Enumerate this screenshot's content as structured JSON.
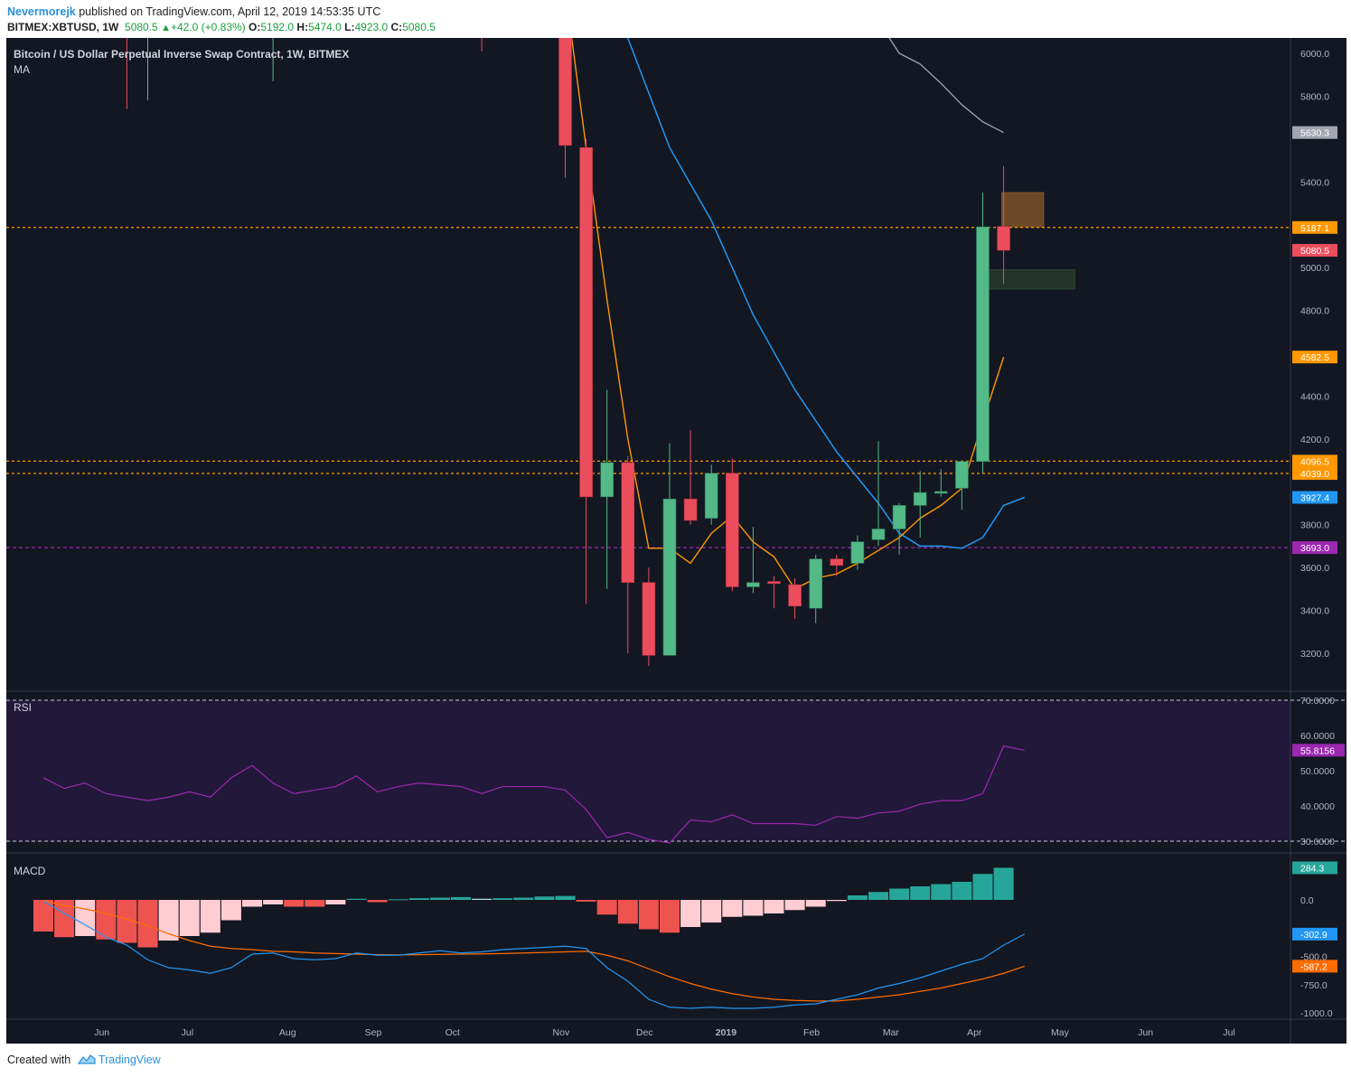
{
  "header": {
    "user": "Nevermorejk",
    "published_text": "published on TradingView.com, April 12, 2019 14:53:35 UTC",
    "symbol": "BITMEX:XBTUSD, 1W",
    "last": "5080.5",
    "change": "+42.0 (+0.83%)",
    "o_label": "O:",
    "o_value": "5192.0",
    "h_label": "H:",
    "h_value": "5474.0",
    "l_label": "L:",
    "l_value": "4923.0",
    "c_label": "C:",
    "c_value": "5080.5"
  },
  "footer": {
    "created_with": "Created with",
    "brand": "TradingView",
    "logo_icon": "tradingview-logo-icon"
  },
  "colors": {
    "background": "#131722",
    "up": "#53b987",
    "down": "#eb4d5c",
    "ma_orange": "#ff9800",
    "ma_blue": "#2196f3",
    "ma_gray": "#a3a6af",
    "purple_line": "#9c27b0",
    "rsi_band": "#22183a",
    "macd_pos": "#26a69a",
    "macd_neg": "#ef5350",
    "macd_pos_light": "#b2dfdb",
    "macd_neg_light": "#ffcdd2"
  },
  "chart_data": [
    {
      "type": "candlestick",
      "title": "Bitcoin / US Dollar Perpetual Inverse Swap Contract, 1W, BITMEX",
      "indicator_label": "MA",
      "x_labels": [
        "Jun",
        "Jul",
        "Aug",
        "Sep",
        "Oct",
        "Nov",
        "Dec",
        "2019",
        "Feb",
        "Mar",
        "Apr",
        "May",
        "Jun",
        "Jul"
      ],
      "y_ticks": [
        "6000.0",
        "5800.0",
        "5400.0",
        "5000.0",
        "4800.0",
        "4400.0",
        "4200.0",
        "3800.0",
        "3600.0",
        "3400.0",
        "3200.0"
      ],
      "ylim": [
        3050,
        6100
      ],
      "candles": [
        {
          "t": 0,
          "o": 6150,
          "h": 6300,
          "l": 6100,
          "c": 6200
        },
        {
          "t": 4,
          "o": 6200,
          "h": 6450,
          "l": 5740,
          "c": 6150
        },
        {
          "t": 5,
          "o": 6150,
          "h": 6300,
          "l": 5780,
          "c": 6250
        },
        {
          "t": 11,
          "o": 6200,
          "h": 6300,
          "l": 5870,
          "c": 6250
        },
        {
          "t": 21,
          "o": 6300,
          "h": 6300,
          "l": 6010,
          "c": 6200
        },
        {
          "t": 25,
          "o": 6400,
          "h": 6500,
          "l": 5420,
          "c": 5570
        },
        {
          "t": 26,
          "o": 5560,
          "h": 5600,
          "l": 3430,
          "c": 3930
        },
        {
          "t": 27,
          "o": 3930,
          "h": 4430,
          "l": 3500,
          "c": 4090
        },
        {
          "t": 28,
          "o": 4090,
          "h": 4120,
          "l": 3200,
          "c": 3530
        },
        {
          "t": 29,
          "o": 3530,
          "h": 3600,
          "l": 3140,
          "c": 3190
        },
        {
          "t": 30,
          "o": 3190,
          "h": 4180,
          "l": 3190,
          "c": 3920
        },
        {
          "t": 31,
          "o": 3920,
          "h": 4240,
          "l": 3800,
          "c": 3820
        },
        {
          "t": 32,
          "o": 3830,
          "h": 4080,
          "l": 3800,
          "c": 4040
        },
        {
          "t": 33,
          "o": 4040,
          "h": 4110,
          "l": 3490,
          "c": 3510
        },
        {
          "t": 34,
          "o": 3510,
          "h": 3790,
          "l": 3480,
          "c": 3530
        },
        {
          "t": 35,
          "o": 3535,
          "h": 3560,
          "l": 3410,
          "c": 3525
        },
        {
          "t": 36,
          "o": 3520,
          "h": 3550,
          "l": 3360,
          "c": 3420
        },
        {
          "t": 37,
          "o": 3410,
          "h": 3660,
          "l": 3340,
          "c": 3640
        },
        {
          "t": 38,
          "o": 3640,
          "h": 3660,
          "l": 3560,
          "c": 3610
        },
        {
          "t": 39,
          "o": 3620,
          "h": 3750,
          "l": 3590,
          "c": 3720
        },
        {
          "t": 40,
          "o": 3730,
          "h": 4190,
          "l": 3700,
          "c": 3780
        },
        {
          "t": 41,
          "o": 3780,
          "h": 3900,
          "l": 3660,
          "c": 3890
        },
        {
          "t": 42,
          "o": 3890,
          "h": 4050,
          "l": 3740,
          "c": 3950
        },
        {
          "t": 43,
          "o": 3950,
          "h": 4060,
          "l": 3930,
          "c": 3955
        },
        {
          "t": 44,
          "o": 3970,
          "h": 4100,
          "l": 3870,
          "c": 4095
        },
        {
          "t": 45,
          "o": 4095,
          "h": 5350,
          "l": 4040,
          "c": 5190
        },
        {
          "t": 46,
          "o": 5192,
          "h": 5474,
          "l": 4923,
          "c": 5080.5
        }
      ],
      "ma_orange": [
        [
          25,
          6300
        ],
        [
          26,
          5560
        ],
        [
          27,
          4850
        ],
        [
          28,
          4200
        ],
        [
          29,
          3690
        ],
        [
          30,
          3690
        ],
        [
          31,
          3620
        ],
        [
          32,
          3760
        ],
        [
          33,
          3840
        ],
        [
          34,
          3720
        ],
        [
          35,
          3650
        ],
        [
          36,
          3500
        ],
        [
          37,
          3550
        ],
        [
          38,
          3570
        ],
        [
          39,
          3620
        ],
        [
          40,
          3680
        ],
        [
          41,
          3740
        ],
        [
          42,
          3830
        ],
        [
          43,
          3890
        ],
        [
          44,
          3970
        ],
        [
          45,
          4280
        ],
        [
          46,
          4582.5
        ]
      ],
      "ma_blue": [
        [
          27,
          6200
        ],
        [
          28,
          6070
        ],
        [
          30,
          5560
        ],
        [
          32,
          5220
        ],
        [
          34,
          4780
        ],
        [
          36,
          4430
        ],
        [
          38,
          4140
        ],
        [
          40,
          3900
        ],
        [
          41,
          3760
        ],
        [
          42,
          3700
        ],
        [
          43,
          3700
        ],
        [
          44,
          3690
        ],
        [
          45,
          3740
        ],
        [
          46,
          3890
        ],
        [
          47,
          3927.4
        ]
      ],
      "ma_gray": [
        [
          40,
          6150
        ],
        [
          41,
          6000
        ],
        [
          42,
          5950
        ],
        [
          43,
          5860
        ],
        [
          44,
          5760
        ],
        [
          45,
          5680
        ],
        [
          46,
          5630.3
        ]
      ],
      "horizontal_levels": [
        {
          "value": 5187.1,
          "label": "5187.1",
          "color": "#ff9800",
          "style": "dotted"
        },
        {
          "value": 4096.5,
          "label": "4096.5",
          "color": "#ff9800",
          "style": "dotted"
        },
        {
          "value": 4039.0,
          "label": "4039.0",
          "color": "#ff9800",
          "style": "dotted"
        },
        {
          "value": 3693.0,
          "label": "3693.0",
          "color": "#9c27b0",
          "style": "dashed"
        }
      ],
      "price_tags": [
        {
          "value": 5630.3,
          "label": "5630.3",
          "color": "#a3a6af"
        },
        {
          "value": 5187.1,
          "label": "5187.1",
          "color": "#ff9800"
        },
        {
          "value": 5080.5,
          "label": "5080.5",
          "color": "#eb4d5c"
        },
        {
          "value": 4582.5,
          "label": "4582.5",
          "color": "#ff9800"
        },
        {
          "value": 4096.5,
          "label": "4096.5",
          "color": "#ff9800"
        },
        {
          "value": 4039.0,
          "label": "4039.0",
          "color": "#ff9800"
        },
        {
          "value": 3927.4,
          "label": "3927.4",
          "color": "#2196f3"
        },
        {
          "value": 3693.0,
          "label": "3693.0",
          "color": "#9c27b0"
        }
      ],
      "zones": [
        {
          "t0": 46,
          "t1": 48,
          "top": 5350,
          "bottom": 5190,
          "color": "#8b5a2b",
          "opacity": 0.75
        },
        {
          "t0": 45.4,
          "t1": 49.5,
          "top": 4990,
          "bottom": 4900,
          "color": "#2e4a32",
          "opacity": 0.6
        }
      ]
    },
    {
      "type": "line",
      "title": "RSI",
      "y_ticks": [
        "70.0000",
        "60.0000",
        "50.0000",
        "40.0000",
        "30.0000"
      ],
      "levels": [
        70,
        30
      ],
      "current": "55.8156",
      "values": [
        [
          0,
          48
        ],
        [
          1,
          45
        ],
        [
          2,
          46.5
        ],
        [
          3,
          43.5
        ],
        [
          4,
          42.5
        ],
        [
          5,
          41.5
        ],
        [
          6,
          42.5
        ],
        [
          7,
          44
        ],
        [
          8,
          42.5
        ],
        [
          9,
          48
        ],
        [
          10,
          51.5
        ],
        [
          11,
          46.5
        ],
        [
          12,
          43.5
        ],
        [
          13,
          44.5
        ],
        [
          14,
          45.5
        ],
        [
          15,
          48.5
        ],
        [
          16,
          44
        ],
        [
          17,
          45.5
        ],
        [
          18,
          46.5
        ],
        [
          19,
          46
        ],
        [
          20,
          45.5
        ],
        [
          21,
          43.5
        ],
        [
          22,
          45.5
        ],
        [
          23,
          45.5
        ],
        [
          24,
          45.5
        ],
        [
          25,
          44.5
        ],
        [
          26,
          39
        ],
        [
          27,
          31
        ],
        [
          28,
          32.5
        ],
        [
          29,
          30.5
        ],
        [
          30,
          29.5
        ],
        [
          31,
          36
        ],
        [
          32,
          35.5
        ],
        [
          33,
          37.5
        ],
        [
          34,
          35
        ],
        [
          35,
          35
        ],
        [
          36,
          35
        ],
        [
          37,
          34.5
        ],
        [
          38,
          37
        ],
        [
          39,
          36.5
        ],
        [
          40,
          38
        ],
        [
          41,
          38.5
        ],
        [
          42,
          40.5
        ],
        [
          43,
          41.5
        ],
        [
          44,
          41.5
        ],
        [
          45,
          43.5
        ],
        [
          46,
          57
        ],
        [
          47,
          55.8156
        ]
      ]
    },
    {
      "type": "bar",
      "title": "MACD",
      "y_ticks": [
        "0.0",
        "-500.0",
        "-750.0",
        "-1000.0"
      ],
      "current_hist": "284.3",
      "current_macd": "-302.9",
      "current_signal": "-587.2",
      "histogram": [
        [
          0,
          -280
        ],
        [
          1,
          -330
        ],
        [
          2,
          -320
        ],
        [
          3,
          -350
        ],
        [
          4,
          -380
        ],
        [
          5,
          -420
        ],
        [
          6,
          -360
        ],
        [
          7,
          -320
        ],
        [
          8,
          -290
        ],
        [
          9,
          -180
        ],
        [
          10,
          -60
        ],
        [
          11,
          -40
        ],
        [
          12,
          -60
        ],
        [
          13,
          -60
        ],
        [
          14,
          -40
        ],
        [
          15,
          10
        ],
        [
          16,
          -20
        ],
        [
          17,
          5
        ],
        [
          18,
          15
        ],
        [
          19,
          20
        ],
        [
          20,
          25
        ],
        [
          21,
          10
        ],
        [
          22,
          15
        ],
        [
          23,
          20
        ],
        [
          24,
          30
        ],
        [
          25,
          35
        ],
        [
          26,
          -15
        ],
        [
          27,
          -130
        ],
        [
          28,
          -210
        ],
        [
          29,
          -260
        ],
        [
          30,
          -290
        ],
        [
          31,
          -240
        ],
        [
          32,
          -200
        ],
        [
          33,
          -150
        ],
        [
          34,
          -140
        ],
        [
          35,
          -120
        ],
        [
          36,
          -90
        ],
        [
          37,
          -60
        ],
        [
          38,
          -10
        ],
        [
          39,
          40
        ],
        [
          40,
          70
        ],
        [
          41,
          100
        ],
        [
          42,
          120
        ],
        [
          43,
          140
        ],
        [
          44,
          160
        ],
        [
          45,
          230
        ],
        [
          46,
          284.3
        ]
      ],
      "macd_line": [
        [
          0,
          -10
        ],
        [
          1,
          -120
        ],
        [
          2,
          -220
        ],
        [
          3,
          -330
        ],
        [
          4,
          -400
        ],
        [
          5,
          -530
        ],
        [
          6,
          -600
        ],
        [
          7,
          -620
        ],
        [
          8,
          -650
        ],
        [
          9,
          -600
        ],
        [
          10,
          -480
        ],
        [
          11,
          -470
        ],
        [
          12,
          -520
        ],
        [
          13,
          -530
        ],
        [
          14,
          -520
        ],
        [
          15,
          -470
        ],
        [
          16,
          -490
        ],
        [
          17,
          -490
        ],
        [
          18,
          -470
        ],
        [
          19,
          -450
        ],
        [
          20,
          -470
        ],
        [
          21,
          -460
        ],
        [
          22,
          -440
        ],
        [
          23,
          -430
        ],
        [
          24,
          -420
        ],
        [
          25,
          -410
        ],
        [
          26,
          -430
        ],
        [
          27,
          -600
        ],
        [
          28,
          -720
        ],
        [
          29,
          -880
        ],
        [
          30,
          -950
        ],
        [
          31,
          -960
        ],
        [
          32,
          -950
        ],
        [
          33,
          -960
        ],
        [
          34,
          -960
        ],
        [
          35,
          -950
        ],
        [
          36,
          -930
        ],
        [
          37,
          -920
        ],
        [
          38,
          -880
        ],
        [
          39,
          -840
        ],
        [
          40,
          -780
        ],
        [
          41,
          -740
        ],
        [
          42,
          -690
        ],
        [
          43,
          -630
        ],
        [
          44,
          -570
        ],
        [
          45,
          -520
        ],
        [
          46,
          -400
        ],
        [
          47,
          -302.9
        ]
      ],
      "signal_line": [
        [
          0,
          -5
        ],
        [
          1,
          -50
        ],
        [
          2,
          -80
        ],
        [
          3,
          -120
        ],
        [
          4,
          -170
        ],
        [
          5,
          -230
        ],
        [
          6,
          -300
        ],
        [
          7,
          -360
        ],
        [
          8,
          -410
        ],
        [
          9,
          -430
        ],
        [
          10,
          -440
        ],
        [
          11,
          -455
        ],
        [
          12,
          -460
        ],
        [
          13,
          -470
        ],
        [
          14,
          -475
        ],
        [
          15,
          -480
        ],
        [
          16,
          -485
        ],
        [
          17,
          -487
        ],
        [
          18,
          -485
        ],
        [
          19,
          -482
        ],
        [
          20,
          -480
        ],
        [
          21,
          -478
        ],
        [
          22,
          -475
        ],
        [
          23,
          -470
        ],
        [
          24,
          -465
        ],
        [
          25,
          -460
        ],
        [
          26,
          -455
        ],
        [
          27,
          -490
        ],
        [
          28,
          -540
        ],
        [
          29,
          -610
        ],
        [
          30,
          -680
        ],
        [
          31,
          -740
        ],
        [
          32,
          -790
        ],
        [
          33,
          -830
        ],
        [
          34,
          -860
        ],
        [
          35,
          -880
        ],
        [
          36,
          -890
        ],
        [
          37,
          -895
        ],
        [
          38,
          -895
        ],
        [
          39,
          -880
        ],
        [
          40,
          -860
        ],
        [
          41,
          -840
        ],
        [
          42,
          -810
        ],
        [
          43,
          -780
        ],
        [
          44,
          -740
        ],
        [
          45,
          -700
        ],
        [
          46,
          -650
        ],
        [
          47,
          -587.2
        ]
      ]
    }
  ]
}
